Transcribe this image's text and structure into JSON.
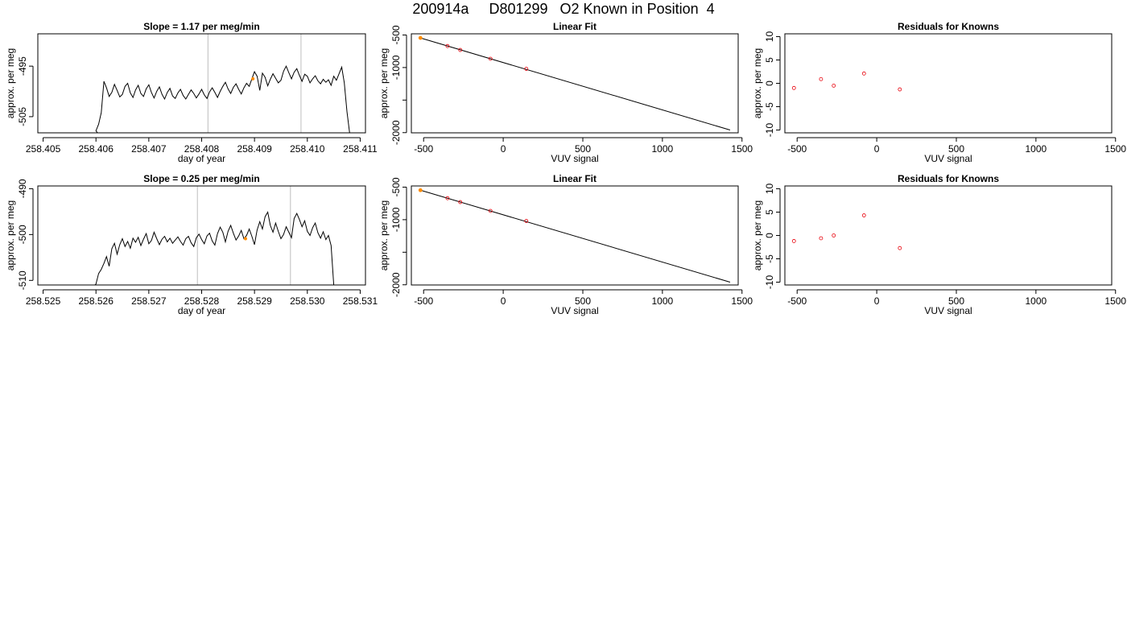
{
  "main_title": "200914a     D801299   O2 Known in Position  4",
  "colors": {
    "line": "#000000",
    "point_known": "#e8000b",
    "point_highlight": "#ff8c00",
    "vline": "#c8c8c8",
    "frame": "#000000"
  },
  "chart_data": [
    {
      "id": "ts1",
      "type": "line",
      "title": "Slope =  1.17  per meg/min",
      "xlabel": "day of year",
      "ylabel": "approx. per meg",
      "xlim": [
        258.4049,
        258.4111
      ],
      "ylim": [
        -508.2,
        -488.6
      ],
      "xticks": [
        258.405,
        258.406,
        258.407,
        258.408,
        258.409,
        258.41,
        258.411
      ],
      "xtick_labels": [
        "258.405",
        "258.406",
        "258.407",
        "258.408",
        "258.409",
        "258.410",
        "258.411"
      ],
      "yticks": [
        -495,
        -505
      ],
      "ytick_labels": [
        "-495",
        "-505"
      ],
      "vlines": [
        258.40812,
        258.40988
      ],
      "t_start": 258.40605,
      "t_end": 258.41085,
      "y_edge_start": -508.2,
      "y_edge_end": -508.2,
      "highlight": {
        "x": 258.40897,
        "y": -497.5
      },
      "series": [
        {
          "x": [
            258.406,
            258.40605,
            258.4061,
            258.40615,
            258.4062,
            258.40625,
            258.4063,
            258.40635,
            258.4064,
            258.40645,
            258.4065,
            258.40655,
            258.4066,
            258.40665,
            258.4067,
            258.40675,
            258.4068,
            258.40685,
            258.4069,
            258.40695,
            258.407,
            258.40705,
            258.4071,
            258.40715,
            258.4072,
            258.40725,
            258.4073,
            258.40735,
            258.4074,
            258.40745,
            258.4075,
            258.40755,
            258.4076,
            258.40765,
            258.4077,
            258.40775,
            258.4078,
            258.40785,
            258.4079,
            258.40795,
            258.408,
            258.40805,
            258.4081,
            258.40815,
            258.4082,
            258.40825,
            258.4083,
            258.40835,
            258.4084,
            258.40845,
            258.4085,
            258.40855,
            258.4086,
            258.40865,
            258.4087,
            258.40875,
            258.4088,
            258.40885,
            258.4089,
            258.40895,
            258.409,
            258.40905,
            258.4091,
            258.40915,
            258.4092,
            258.40925,
            258.4093,
            258.40935,
            258.4094,
            258.40945,
            258.4095,
            258.40955,
            258.4096,
            258.40965,
            258.4097,
            258.40975,
            258.4098,
            258.40985,
            258.4099,
            258.40995,
            258.41,
            258.41005,
            258.4101,
            258.41015,
            258.4102,
            258.41025,
            258.4103,
            258.41035,
            258.4104,
            258.41045,
            258.4105,
            258.41055,
            258.4106,
            258.41065,
            258.4107,
            258.41075,
            258.4108
          ],
          "y": [
            -507.8,
            -506.5,
            -504.2,
            -498.0,
            -499.3,
            -501.0,
            -500.2,
            -498.6,
            -499.8,
            -501.1,
            -500.6,
            -499.0,
            -498.4,
            -500.3,
            -501.2,
            -499.7,
            -498.8,
            -500.4,
            -501.0,
            -499.5,
            -498.7,
            -500.2,
            -501.3,
            -500.0,
            -499.1,
            -500.6,
            -501.5,
            -500.2,
            -499.4,
            -500.9,
            -501.4,
            -500.3,
            -499.6,
            -500.8,
            -501.5,
            -500.6,
            -499.7,
            -500.4,
            -501.3,
            -500.5,
            -499.6,
            -500.7,
            -501.4,
            -500.1,
            -499.3,
            -500.2,
            -501.2,
            -500.0,
            -499.0,
            -498.2,
            -499.5,
            -500.4,
            -499.2,
            -498.5,
            -499.6,
            -500.5,
            -499.3,
            -498.4,
            -499.0,
            -497.5,
            -496.1,
            -497.0,
            -499.8,
            -496.4,
            -497.2,
            -498.9,
            -497.6,
            -496.5,
            -497.4,
            -498.3,
            -497.8,
            -496.0,
            -495.0,
            -496.3,
            -497.5,
            -496.2,
            -495.5,
            -496.8,
            -498.0,
            -496.6,
            -497.0,
            -498.3,
            -497.5,
            -496.9,
            -497.9,
            -498.5,
            -497.6,
            -498.2,
            -497.7,
            -498.8,
            -497.0,
            -497.8,
            -496.5,
            -495.2,
            -498.3,
            -504.0,
            -508.2
          ]
        }
      ]
    },
    {
      "id": "fit1",
      "type": "scatter",
      "title": "Linear Fit",
      "xlabel": "VUV signal",
      "ylabel": "approx. per meg",
      "xlim": [
        -577,
        1476
      ],
      "ylim": [
        -2003,
        -482
      ],
      "xticks": [
        -500,
        0,
        500,
        1000,
        1500
      ],
      "xtick_labels": [
        "-500",
        "0",
        "500",
        "1000",
        "1500"
      ],
      "yticks": [
        -500,
        -1000,
        -1500,
        -2000
      ],
      "ytick_labels": [
        "-500",
        "-1000",
        "",
        "-2000"
      ],
      "fit_line": {
        "x": [
          -520,
          1425
        ],
        "y": [
          -545,
          -1960
        ]
      },
      "points": {
        "x": [
          -520,
          -350,
          -270,
          -80,
          145
        ],
        "y": [
          -545,
          -670,
          -730,
          -865,
          -1020
        ]
      },
      "highlight_index": 0
    },
    {
      "id": "res1",
      "type": "scatter",
      "title": "Residuals for Knowns",
      "xlabel": "VUV signal",
      "ylabel": "approx. per meg",
      "xlim": [
        -577,
        1476
      ],
      "ylim": [
        -10.6,
        10.6
      ],
      "xticks": [
        -500,
        0,
        500,
        1000,
        1500
      ],
      "xtick_labels": [
        "-500",
        "0",
        "500",
        "1000",
        "1500"
      ],
      "yticks": [
        10,
        5,
        0,
        -5,
        -10
      ],
      "ytick_labels": [
        "10",
        "5",
        "0",
        "-5",
        "-10"
      ],
      "points": {
        "x": [
          -520,
          -350,
          -270,
          -80,
          145
        ],
        "y": [
          -1.0,
          0.9,
          -0.5,
          2.1,
          -1.3
        ]
      }
    },
    {
      "id": "ts2",
      "type": "line",
      "title": "Slope =  0.25  per meg/min",
      "xlabel": "day of year",
      "ylabel": "approx. per meg",
      "xlim": [
        258.5249,
        258.5311
      ],
      "ylim": [
        -511.0,
        -489.4
      ],
      "xticks": [
        258.525,
        258.526,
        258.527,
        258.528,
        258.529,
        258.53,
        258.531
      ],
      "xtick_labels": [
        "258.525",
        "258.526",
        "258.527",
        "258.528",
        "258.529",
        "258.530",
        "258.531"
      ],
      "yticks": [
        -490,
        -500,
        -510
      ],
      "ytick_labels": [
        "-490",
        "-500",
        "-510"
      ],
      "vlines": [
        258.52792,
        258.52968
      ],
      "t_start": 258.526,
      "t_end": 258.53055,
      "y_edge_start": -511.0,
      "y_edge_end": -511.0,
      "highlight": {
        "x": 258.52883,
        "y": -500.9
      },
      "series": [
        {
          "x": [
            258.526,
            258.52605,
            258.5261,
            258.52615,
            258.5262,
            258.52625,
            258.5263,
            258.52635,
            258.5264,
            258.52645,
            258.5265,
            258.52655,
            258.5266,
            258.52665,
            258.5267,
            258.52675,
            258.5268,
            258.52685,
            258.5269,
            258.52695,
            258.527,
            258.52705,
            258.5271,
            258.52715,
            258.5272,
            258.52725,
            258.5273,
            258.52735,
            258.5274,
            258.52745,
            258.5275,
            258.52755,
            258.5276,
            258.52765,
            258.5277,
            258.52775,
            258.5278,
            258.52785,
            258.5279,
            258.52795,
            258.528,
            258.52805,
            258.5281,
            258.52815,
            258.5282,
            258.52825,
            258.5283,
            258.52835,
            258.5284,
            258.52845,
            258.5285,
            258.52855,
            258.5286,
            258.52865,
            258.5287,
            258.52875,
            258.5288,
            258.52885,
            258.5289,
            258.52895,
            258.529,
            258.52905,
            258.5291,
            258.52915,
            258.5292,
            258.52925,
            258.5293,
            258.52935,
            258.5294,
            258.52945,
            258.5295,
            258.52955,
            258.5296,
            258.52965,
            258.5297,
            258.52975,
            258.5298,
            258.52985,
            258.5299,
            258.52995,
            258.53,
            258.53005,
            258.5301,
            258.53015,
            258.5302,
            258.53025,
            258.5303,
            258.53035,
            258.5304,
            258.53045,
            258.5305
          ],
          "y": [
            -510.8,
            -508.5,
            -507.6,
            -506.3,
            -504.8,
            -506.9,
            -503.1,
            -501.9,
            -504.3,
            -502.2,
            -500.9,
            -502.6,
            -501.5,
            -503.0,
            -500.8,
            -501.7,
            -500.6,
            -502.4,
            -501.0,
            -499.8,
            -502.0,
            -501.3,
            -499.5,
            -500.9,
            -502.2,
            -501.0,
            -500.4,
            -501.6,
            -500.8,
            -501.9,
            -501.2,
            -500.5,
            -501.5,
            -502.3,
            -500.9,
            -500.4,
            -501.8,
            -502.6,
            -500.7,
            -499.9,
            -501.1,
            -502.0,
            -500.3,
            -499.7,
            -501.4,
            -502.3,
            -499.8,
            -498.4,
            -499.5,
            -501.6,
            -499.3,
            -498.0,
            -499.7,
            -501.2,
            -500.3,
            -499.1,
            -500.9,
            -500.2,
            -498.8,
            -500.4,
            -502.2,
            -499.0,
            -497.2,
            -498.8,
            -496.1,
            -495.1,
            -498.0,
            -499.5,
            -497.5,
            -499.3,
            -500.9,
            -500.0,
            -498.3,
            -499.5,
            -500.7,
            -496.5,
            -495.4,
            -496.7,
            -498.3,
            -497.0,
            -499.3,
            -500.2,
            -498.5,
            -497.5,
            -499.6,
            -500.8,
            -499.4,
            -501.1,
            -500.2,
            -502.4,
            -511.0
          ]
        }
      ]
    },
    {
      "id": "fit2",
      "type": "scatter",
      "title": "Linear Fit",
      "xlabel": "VUV signal",
      "ylabel": "approx. per meg",
      "xlim": [
        -577,
        1476
      ],
      "ylim": [
        -2003,
        -482
      ],
      "xticks": [
        -500,
        0,
        500,
        1000,
        1500
      ],
      "xtick_labels": [
        "-500",
        "0",
        "500",
        "1000",
        "1500"
      ],
      "yticks": [
        -500,
        -1000,
        -1500,
        -2000
      ],
      "ytick_labels": [
        "-500",
        "-1000",
        "",
        "-2000"
      ],
      "fit_line": {
        "x": [
          -520,
          1425
        ],
        "y": [
          -547,
          -1960
        ]
      },
      "points": {
        "x": [
          -520,
          -350,
          -270,
          -80,
          145
        ],
        "y": [
          -547,
          -670,
          -730,
          -865,
          -1020
        ]
      },
      "highlight_index": 0
    },
    {
      "id": "res2",
      "type": "scatter",
      "title": "Residuals for Knowns",
      "xlabel": "VUV signal",
      "ylabel": "approx. per meg",
      "xlim": [
        -577,
        1476
      ],
      "ylim": [
        -10.6,
        10.6
      ],
      "xticks": [
        -500,
        0,
        500,
        1000,
        1500
      ],
      "xtick_labels": [
        "-500",
        "0",
        "500",
        "1000",
        "1500"
      ],
      "yticks": [
        10,
        5,
        0,
        -5,
        -10
      ],
      "ytick_labels": [
        "10",
        "5",
        "0",
        "-5",
        "-10"
      ],
      "points": {
        "x": [
          -520,
          -350,
          -270,
          -80,
          145
        ],
        "y": [
          -1.2,
          -0.6,
          0.0,
          4.3,
          -2.7
        ]
      }
    }
  ]
}
